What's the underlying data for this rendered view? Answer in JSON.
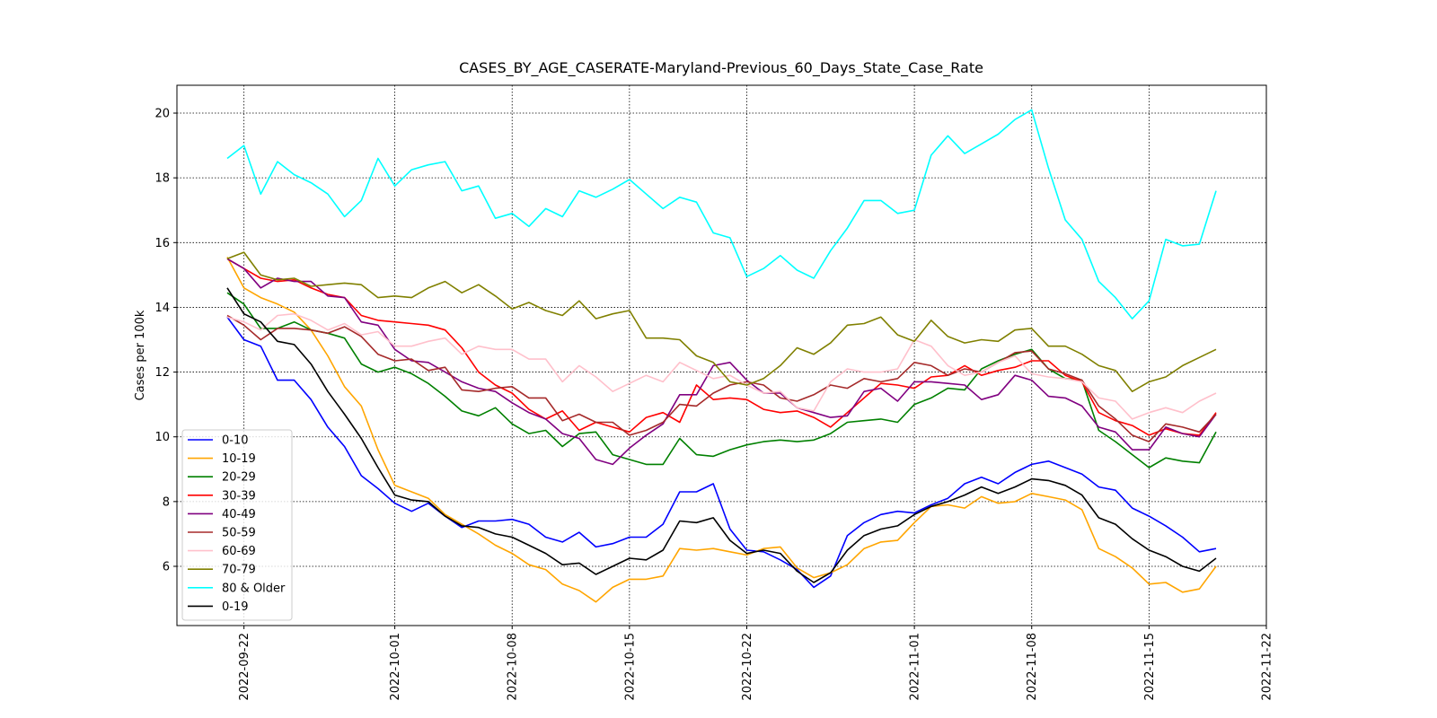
{
  "chart_data": {
    "type": "line",
    "title": "CASES_BY_AGE_CASERATE-Maryland-Previous_60_Days_State_Case_Rate",
    "y_label": "Cases per 100k",
    "x": [
      "2022-09-21",
      "2022-09-22",
      "2022-09-23",
      "2022-09-24",
      "2022-09-25",
      "2022-09-26",
      "2022-09-27",
      "2022-09-28",
      "2022-09-29",
      "2022-09-30",
      "2022-10-01",
      "2022-10-02",
      "2022-10-03",
      "2022-10-04",
      "2022-10-05",
      "2022-10-06",
      "2022-10-07",
      "2022-10-08",
      "2022-10-09",
      "2022-10-10",
      "2022-10-11",
      "2022-10-12",
      "2022-10-13",
      "2022-10-14",
      "2022-10-15",
      "2022-10-16",
      "2022-10-17",
      "2022-10-18",
      "2022-10-19",
      "2022-10-20",
      "2022-10-21",
      "2022-10-22",
      "2022-10-23",
      "2022-10-24",
      "2022-10-25",
      "2022-10-26",
      "2022-10-27",
      "2022-10-28",
      "2022-10-29",
      "2022-10-30",
      "2022-10-31",
      "2022-11-01",
      "2022-11-02",
      "2022-11-03",
      "2022-11-04",
      "2022-11-05",
      "2022-11-06",
      "2022-11-07",
      "2022-11-08",
      "2022-11-09",
      "2022-11-10",
      "2022-11-11",
      "2022-11-12",
      "2022-11-13",
      "2022-11-14",
      "2022-11-15",
      "2022-11-16",
      "2022-11-17",
      "2022-11-18",
      "2022-11-19"
    ],
    "xlim": [
      "2022-09-18",
      "2022-11-22"
    ],
    "xticks": [
      "2022-09-22",
      "2022-10-01",
      "2022-10-08",
      "2022-10-15",
      "2022-10-22",
      "2022-11-01",
      "2022-11-08",
      "2022-11-15",
      "2022-11-22"
    ],
    "ylim": [
      4.17,
      20.86
    ],
    "yticks": [
      6,
      8,
      10,
      12,
      14,
      16,
      18,
      20
    ],
    "grid": true,
    "legend": "lower left",
    "series": [
      {
        "name": "0-10",
        "color": "#0000ff",
        "values": [
          13.7,
          13.0,
          12.8,
          11.75,
          11.75,
          11.15,
          10.3,
          9.7,
          8.8,
          8.4,
          7.95,
          7.7,
          7.95,
          7.55,
          7.2,
          7.4,
          7.4,
          7.45,
          7.3,
          6.9,
          6.75,
          7.05,
          6.6,
          6.7,
          6.9,
          6.9,
          7.3,
          8.3,
          8.3,
          8.55,
          7.15,
          6.5,
          6.45,
          6.2,
          5.9,
          5.35,
          5.7,
          6.95,
          7.35,
          7.6,
          7.7,
          7.65,
          7.9,
          8.1,
          8.55,
          8.75,
          8.55,
          8.9,
          9.15,
          9.25,
          9.05,
          8.85,
          8.45,
          8.35,
          7.8,
          7.55,
          7.25,
          6.9,
          6.45,
          6.55
        ]
      },
      {
        "name": "10-19",
        "color": "#ffa500",
        "values": [
          15.55,
          14.6,
          14.3,
          14.1,
          13.85,
          13.3,
          12.5,
          11.55,
          10.95,
          9.6,
          8.5,
          8.3,
          8.1,
          7.6,
          7.3,
          7.0,
          6.65,
          6.4,
          6.05,
          5.9,
          5.45,
          5.25,
          4.9,
          5.35,
          5.6,
          5.6,
          5.7,
          6.55,
          6.5,
          6.55,
          6.45,
          6.35,
          6.55,
          6.6,
          5.95,
          5.65,
          5.8,
          6.05,
          6.55,
          6.75,
          6.8,
          7.35,
          7.85,
          7.9,
          7.8,
          8.15,
          7.95,
          8.0,
          8.25,
          8.15,
          8.05,
          7.75,
          6.55,
          6.3,
          5.95,
          5.45,
          5.5,
          5.2,
          5.3,
          6.0
        ]
      },
      {
        "name": "20-29",
        "color": "#008000",
        "values": [
          14.45,
          14.1,
          13.35,
          13.35,
          13.55,
          13.3,
          13.2,
          13.05,
          12.25,
          12.0,
          12.15,
          11.95,
          11.65,
          11.25,
          10.8,
          10.65,
          10.9,
          10.4,
          10.1,
          10.2,
          9.7,
          10.1,
          10.15,
          9.45,
          9.3,
          9.15,
          9.15,
          9.95,
          9.45,
          9.4,
          9.6,
          9.75,
          9.85,
          9.9,
          9.85,
          9.9,
          10.1,
          10.45,
          10.5,
          10.55,
          10.45,
          11.0,
          11.2,
          11.5,
          11.45,
          12.1,
          12.35,
          12.55,
          12.7,
          12.1,
          11.8,
          11.75,
          10.2,
          9.85,
          9.45,
          9.05,
          9.35,
          9.25,
          9.2,
          10.15
        ]
      },
      {
        "name": "30-39",
        "color": "#ff0000",
        "values": [
          15.5,
          15.2,
          14.9,
          14.8,
          14.85,
          14.6,
          14.4,
          14.3,
          13.75,
          13.6,
          13.55,
          13.5,
          13.45,
          13.3,
          12.75,
          12.0,
          11.6,
          11.35,
          10.85,
          10.55,
          10.8,
          10.2,
          10.45,
          10.3,
          10.15,
          10.6,
          10.75,
          10.45,
          11.6,
          11.15,
          11.2,
          11.15,
          10.85,
          10.75,
          10.8,
          10.6,
          10.3,
          10.75,
          11.2,
          11.65,
          11.6,
          11.5,
          11.85,
          11.9,
          12.2,
          11.9,
          12.05,
          12.15,
          12.35,
          12.35,
          11.9,
          11.7,
          10.75,
          10.5,
          10.35,
          10.05,
          10.25,
          10.1,
          10.05,
          10.75
        ]
      },
      {
        "name": "40-49",
        "color": "#800080",
        "values": [
          15.5,
          15.2,
          14.6,
          14.9,
          14.8,
          14.8,
          14.35,
          14.3,
          13.55,
          13.45,
          12.7,
          12.35,
          12.3,
          12.0,
          11.7,
          11.5,
          11.4,
          11.05,
          10.75,
          10.55,
          10.1,
          9.95,
          9.3,
          9.15,
          9.65,
          10.05,
          10.4,
          11.3,
          11.3,
          12.2,
          12.3,
          11.75,
          11.35,
          11.35,
          10.9,
          10.75,
          10.6,
          10.65,
          11.4,
          11.5,
          11.1,
          11.7,
          11.7,
          11.65,
          11.6,
          11.15,
          11.3,
          11.9,
          11.75,
          11.25,
          11.2,
          10.95,
          10.3,
          10.15,
          9.6,
          9.6,
          10.3,
          10.1,
          10.0,
          10.7
        ]
      },
      {
        "name": "50-59",
        "color": "#a52a2a",
        "values": [
          13.75,
          13.45,
          13.0,
          13.35,
          13.35,
          13.3,
          13.2,
          13.4,
          13.1,
          12.55,
          12.35,
          12.4,
          12.05,
          12.15,
          11.45,
          11.4,
          11.5,
          11.55,
          11.2,
          11.2,
          10.5,
          10.7,
          10.45,
          10.45,
          10.05,
          10.2,
          10.45,
          11.0,
          10.95,
          11.35,
          11.6,
          11.7,
          11.6,
          11.2,
          11.1,
          11.3,
          11.6,
          11.5,
          11.8,
          11.7,
          11.8,
          12.3,
          12.2,
          11.9,
          12.1,
          12.0,
          12.3,
          12.6,
          12.65,
          12.1,
          11.95,
          11.75,
          10.95,
          10.55,
          10.05,
          9.85,
          10.4,
          10.3,
          10.15,
          10.7
        ]
      },
      {
        "name": "60-69",
        "color": "#ffc0cb",
        "values": [
          13.7,
          13.55,
          13.3,
          13.75,
          13.8,
          13.6,
          13.3,
          13.5,
          13.15,
          13.25,
          12.8,
          12.8,
          12.95,
          13.05,
          12.55,
          12.8,
          12.7,
          12.7,
          12.4,
          12.4,
          11.7,
          12.2,
          11.85,
          11.4,
          11.65,
          11.9,
          11.7,
          12.3,
          12.05,
          11.8,
          11.9,
          11.6,
          11.35,
          11.4,
          10.9,
          10.8,
          11.7,
          12.1,
          12.0,
          12.0,
          12.1,
          13.0,
          12.8,
          12.2,
          11.9,
          12.0,
          12.3,
          12.5,
          11.95,
          11.85,
          11.8,
          11.7,
          11.2,
          11.1,
          10.55,
          10.75,
          10.9,
          10.75,
          11.1,
          11.35
        ]
      },
      {
        "name": "70-79",
        "color": "#808000",
        "values": [
          15.5,
          15.7,
          15.0,
          14.85,
          14.9,
          14.65,
          14.7,
          14.75,
          14.7,
          14.3,
          14.35,
          14.3,
          14.6,
          14.8,
          14.45,
          14.7,
          14.35,
          13.95,
          14.15,
          13.9,
          13.75,
          14.2,
          13.65,
          13.8,
          13.9,
          13.05,
          13.05,
          13.0,
          12.5,
          12.3,
          11.7,
          11.6,
          11.8,
          12.2,
          12.75,
          12.55,
          12.9,
          13.45,
          13.5,
          13.7,
          13.15,
          12.95,
          13.6,
          13.1,
          12.9,
          13.0,
          12.95,
          13.3,
          13.35,
          12.8,
          12.8,
          12.55,
          12.2,
          12.05,
          11.4,
          11.7,
          11.85,
          12.2,
          12.45,
          12.7
        ]
      },
      {
        "name": "80 & Older",
        "color": "#00ffff",
        "values": [
          18.6,
          19.0,
          17.5,
          18.5,
          18.1,
          17.85,
          17.5,
          16.8,
          17.3,
          18.6,
          17.75,
          18.25,
          18.4,
          18.5,
          17.6,
          17.75,
          16.75,
          16.9,
          16.5,
          17.05,
          16.8,
          17.6,
          17.4,
          17.65,
          17.95,
          17.5,
          17.05,
          17.4,
          17.25,
          16.3,
          16.15,
          14.95,
          15.2,
          15.6,
          15.15,
          14.9,
          15.75,
          16.45,
          17.3,
          17.3,
          16.9,
          17.0,
          18.7,
          19.3,
          18.75,
          19.05,
          19.35,
          19.8,
          20.1,
          18.3,
          16.7,
          16.1,
          14.8,
          14.3,
          13.65,
          14.2,
          16.1,
          15.9,
          15.95,
          17.6
        ]
      },
      {
        "name": "0-19",
        "color": "#000000",
        "values": [
          14.6,
          13.8,
          13.55,
          12.95,
          12.85,
          12.25,
          11.4,
          10.7,
          9.95,
          9.05,
          8.2,
          8.05,
          8.0,
          7.55,
          7.25,
          7.2,
          7.0,
          6.9,
          6.65,
          6.4,
          6.05,
          6.1,
          5.75,
          6.0,
          6.25,
          6.2,
          6.5,
          7.4,
          7.35,
          7.5,
          6.8,
          6.4,
          6.5,
          6.4,
          5.85,
          5.5,
          5.8,
          6.5,
          6.95,
          7.15,
          7.25,
          7.6,
          7.85,
          8.0,
          8.2,
          8.45,
          8.25,
          8.45,
          8.7,
          8.65,
          8.5,
          8.2,
          7.5,
          7.3,
          6.85,
          6.5,
          6.3,
          6.0,
          5.85,
          6.25
        ]
      }
    ]
  }
}
